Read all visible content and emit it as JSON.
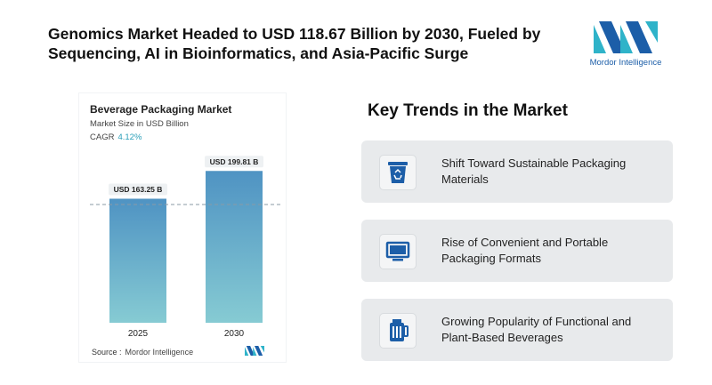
{
  "headline": "Genomics Market Headed to USD 118.67 Billion by 2030, Fueled by Sequencing, AI in Bioinformatics, and Asia-Pacific Surge",
  "logo": {
    "text": "Mordor Intelligence"
  },
  "chart": {
    "source_label": "Source :",
    "source_value": "Mordor Intelligence"
  },
  "chart_data": {
    "type": "bar",
    "title": "Beverage Packaging Market",
    "subtitle": "Market Size in USD Billion",
    "cagr_label": "CAGR",
    "cagr_value": "4.12%",
    "categories": [
      "2025",
      "2030"
    ],
    "values": [
      163.25,
      199.81
    ],
    "data_labels": [
      "USD 163.25 B",
      "USD 199.81 B"
    ],
    "ylim": [
      0,
      220
    ],
    "grid": false,
    "colors": {
      "bar_top": "#4f93c3",
      "bar_bottom": "#86cbd3"
    }
  },
  "trends": {
    "heading": "Key Trends in the Market",
    "items": [
      {
        "icon": "recycle-bin-icon",
        "text": "Shift Toward Sustainable Packaging Materials"
      },
      {
        "icon": "monitor-icon",
        "text": "Rise of Convenient and Portable Packaging Formats"
      },
      {
        "icon": "beverage-jar-icon",
        "text": "Growing Popularity of Functional and Plant-Based Beverages"
      }
    ]
  },
  "colors": {
    "accent": "#2a9fb8",
    "icon": "#1c5ea8",
    "card_bg": "#e8eaec"
  }
}
